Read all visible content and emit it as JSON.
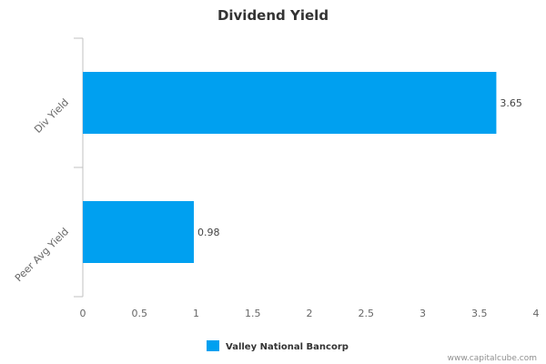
{
  "chart_data": {
    "type": "bar",
    "orientation": "horizontal",
    "title": "Dividend Yield",
    "categories": [
      "Div Yield",
      "Peer Avg Yield"
    ],
    "series": [
      {
        "name": "Valley National Bancorp",
        "values": [
          3.65,
          0.98
        ],
        "color": "#00a0f0"
      }
    ],
    "data_labels": [
      "3.65",
      "0.98"
    ],
    "xlim": [
      0,
      4
    ],
    "x_ticks": [
      0,
      0.5,
      1,
      1.5,
      2,
      2.5,
      3,
      3.5,
      4
    ],
    "x_tick_labels": [
      "0",
      "0.5",
      "1",
      "1.5",
      "2",
      "2.5",
      "3",
      "3.5",
      "4"
    ],
    "grid": false,
    "legend_position": "bottom-center"
  },
  "credit": "www.capitalcube.com"
}
